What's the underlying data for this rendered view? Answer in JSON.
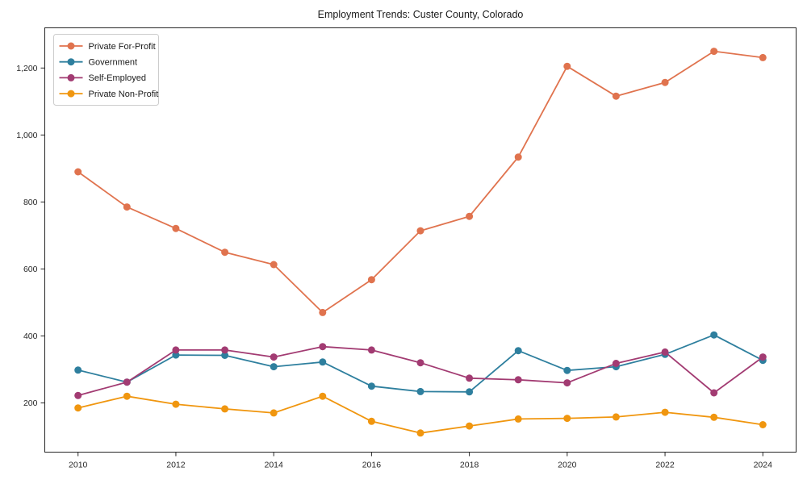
{
  "chart_data": {
    "type": "line",
    "title": "Employment Trends: Custer County, Colorado",
    "xlabel": "",
    "ylabel": "",
    "x": [
      2010,
      2011,
      2012,
      2013,
      2014,
      2015,
      2016,
      2017,
      2018,
      2019,
      2020,
      2021,
      2022,
      2023,
      2024
    ],
    "series": [
      {
        "name": "Private For-Profit",
        "color": "#E0734E",
        "values": [
          890,
          785,
          721,
          650,
          613,
          470,
          568,
          714,
          757,
          934,
          1205,
          1116,
          1157,
          1250,
          1231
        ]
      },
      {
        "name": "Government",
        "color": "#2E7F9E",
        "values": [
          298,
          262,
          343,
          342,
          308,
          322,
          250,
          234,
          233,
          356,
          297,
          308,
          345,
          403,
          327
        ]
      },
      {
        "name": "Self-Employed",
        "color": "#A23B72",
        "values": [
          222,
          262,
          358,
          358,
          337,
          368,
          358,
          320,
          274,
          269,
          260,
          318,
          352,
          230,
          337
        ]
      },
      {
        "name": "Private Non-Profit",
        "color": "#F0960F",
        "values": [
          185,
          220,
          196,
          182,
          170,
          220,
          145,
          110,
          131,
          152,
          154,
          158,
          172,
          157,
          135
        ]
      }
    ],
    "x_ticks": [
      2010,
      2012,
      2014,
      2016,
      2018,
      2020,
      2022,
      2024
    ],
    "x_tick_labels": [
      "2010",
      "2012",
      "2014",
      "2016",
      "2018",
      "2020",
      "2022",
      "2024"
    ],
    "y_ticks": [
      200,
      400,
      600,
      800,
      1000,
      1200
    ],
    "y_tick_labels": [
      "200",
      "400",
      "600",
      "800",
      "1,000",
      "1,200"
    ],
    "xlim": [
      2009.32,
      2024.68
    ],
    "ylim": [
      53,
      1320
    ],
    "grid": false,
    "legend_position": "upper-left",
    "spine_color": "#262626",
    "tick_label_color": "#262626",
    "legend_border_color": "#cccccc"
  }
}
